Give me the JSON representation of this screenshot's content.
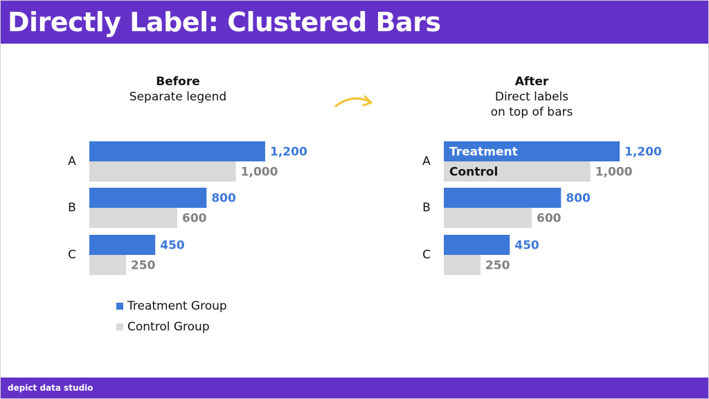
{
  "header": {
    "title": "Directly Label: Clustered Bars"
  },
  "footer": {
    "brand": "depict data studio"
  },
  "colors": {
    "brand_purple": "#6431c8",
    "treatment": "#3c78d8",
    "control": "#d9d9d9",
    "control_label": "#808080",
    "arrow": "#f2c230"
  },
  "panels": {
    "before": {
      "heading": "Before",
      "subheading": "Separate legend",
      "legend": [
        {
          "label": "Treatment Group",
          "color": "#3c78d8"
        },
        {
          "label": "Control Group",
          "color": "#d9d9d9"
        }
      ]
    },
    "after": {
      "heading": "After",
      "subheading_line1": "Direct labels",
      "subheading_line2": "on top of bars",
      "inbar_labels": [
        "Treatment",
        "Control"
      ]
    },
    "arrow_icon": "curved-arrow-right-icon"
  },
  "chart_data": [
    {
      "type": "bar",
      "orientation": "horizontal",
      "title": "Before",
      "subtitle": "Separate legend",
      "categories": [
        "A",
        "B",
        "C"
      ],
      "series": [
        {
          "name": "Treatment Group",
          "values": [
            1200,
            800,
            450
          ],
          "labels": [
            "1,200",
            "800",
            "450"
          ]
        },
        {
          "name": "Control Group",
          "values": [
            1000,
            600,
            250
          ],
          "labels": [
            "1,000",
            "600",
            "250"
          ]
        }
      ],
      "legend": "bottom-left",
      "grid": false
    },
    {
      "type": "bar",
      "orientation": "horizontal",
      "title": "After",
      "subtitle": "Direct labels on top of bars",
      "categories": [
        "A",
        "B",
        "C"
      ],
      "series": [
        {
          "name": "Treatment",
          "values": [
            1200,
            800,
            450
          ],
          "labels": [
            "1,200",
            "800",
            "450"
          ]
        },
        {
          "name": "Control",
          "values": [
            1000,
            600,
            250
          ],
          "labels": [
            "1,000",
            "600",
            "250"
          ]
        }
      ],
      "legend": "none (direct labels)",
      "grid": false
    }
  ]
}
